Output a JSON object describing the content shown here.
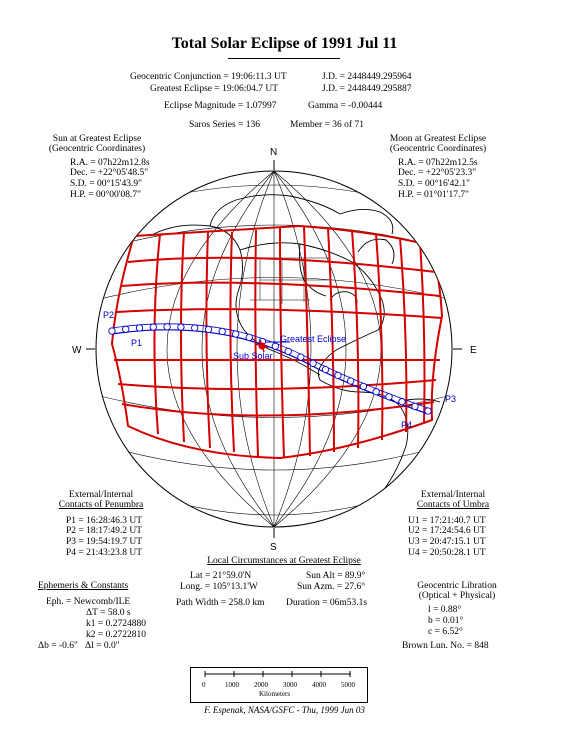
{
  "title": "Total Solar Eclipse of 1991 Jul 11",
  "header": {
    "geo_conj": "Geocentric Conjunction = 19:06:11.3 UT",
    "geo_conj_jd": "J.D. = 2448449.295964",
    "greatest": "Greatest Eclipse = 19:06:04.7 UT",
    "greatest_jd": "J.D. = 2448449.295887",
    "magnitude": "Eclipse Magnitude = 1.07997",
    "gamma": "Gamma = -0.00444",
    "saros": "Saros Series = 136",
    "member": "Member = 36 of 71"
  },
  "sun": {
    "heading1": "Sun at Greatest Eclipse",
    "heading2": "(Geocentric Coordinates)",
    "ra": "R.A. = 07h22m12.8s",
    "dec": "Dec. = +22°05'48.5\"",
    "sd": "S.D. = 00°15'43.9\"",
    "hp": "H.P. = 00°00'08.7\""
  },
  "moon": {
    "heading1": "Moon at Greatest Eclipse",
    "heading2": "(Geocentric Coordinates)",
    "ra": "R.A. = 07h22m12.5s",
    "dec": "Dec. = +22°05'23.3\"",
    "sd": "S.D. = 00°16'42.1\"",
    "hp": "H.P. = 01°01'17.7\""
  },
  "map": {
    "compass_n": "N",
    "compass_s": "S",
    "compass_e": "E",
    "compass_w": "W",
    "label_p1": "P1",
    "label_p2": "P2",
    "label_p3": "P3",
    "label_p4": "P4",
    "label_greatest": "Greatest Eclipse",
    "label_subsolar": "Sub Solar",
    "colors": {
      "contacts": "#d40000",
      "path": "#0000cc",
      "map": "#000000"
    }
  },
  "penumbra": {
    "heading1": "External/Internal",
    "heading2": "Contacts of Penumbra",
    "p1": "P1 = 16:28:46.3 UT",
    "p2": "P2 = 18:17:49.2 UT",
    "p3": "P3 = 19:54:19.7 UT",
    "p4": "P4 = 21:43:23.8 UT"
  },
  "umbra": {
    "heading1": "External/Internal",
    "heading2": "Contacts of Umbra",
    "u1": "U1 = 17:21:40.7 UT",
    "u2": "U2 = 17:24:54.6 UT",
    "u3": "U3 = 20:47:15.1 UT",
    "u4": "U4 = 20:50:28.1 UT"
  },
  "local": {
    "heading": "Local Circumstances at Greatest Eclipse",
    "lat": "Lat = 21°59.0'N",
    "long": "Long. = 105°13.1'W",
    "sun_alt": "Sun Alt = 89.9°",
    "sun_azm": "Sun Azm. = 27.6°",
    "path_width": "Path Width = 258.0 km",
    "duration": "Duration = 06m53.1s"
  },
  "ephemeris": {
    "heading": "Ephemeris & Constants",
    "eph": "Eph. = Newcomb/ILE",
    "delta_t": "ΔT = 58.0 s",
    "k1": "k1 = 0.2724880",
    "k2": "k2 = 0.2722810",
    "db_dl": "Δb = -0.6\"   Δl = 0.0\""
  },
  "libration": {
    "heading1": "Geocentric Libration",
    "heading2": "(Optical + Physical)",
    "l": "l = 0.88°",
    "b": "b = 0.01°",
    "c": "c = 6.52°",
    "brown": "Brown Lun. No. = 848"
  },
  "scale": {
    "ticks": [
      "0",
      "1000",
      "2000",
      "3000",
      "4000",
      "5000"
    ],
    "unit": "Kilometers"
  },
  "credit": "F. Espenak, NASA/GSFC - Thu, 1999 Jun 03"
}
